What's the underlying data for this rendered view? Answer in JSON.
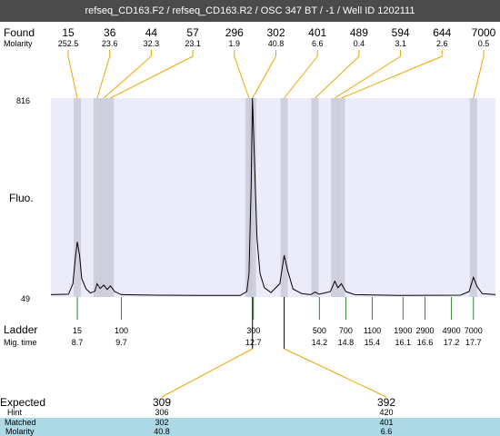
{
  "header": {
    "title": "refseq_CD163.F2 / refseq_CD163.R2 / OSC 347 BT / -1 / Well ID 1202111"
  },
  "labels": {
    "found": "Found",
    "molarity": "Molarity",
    "fluo": "Fluo.",
    "ladder": "Ladder",
    "mig_time": "Mig. time",
    "expected": "Expected",
    "hint": "Hint",
    "matched": "Matched",
    "molarity_bottom": "Molarity"
  },
  "colors": {
    "title_bg": "#4b4b4b",
    "plot_bg": "#ebebfa",
    "band": "#c8c8d6",
    "orange_lines": "#f0a500",
    "ladder_ticks": "#2a8a2a",
    "matched_bg": "#add8e6"
  },
  "chart_data": {
    "type": "line",
    "ylabel": "Fluo.",
    "y_ticks": [
      "816",
      "49"
    ],
    "ylim": [
      49,
      816
    ],
    "xlim": [
      8.1,
      18.2
    ],
    "found": [
      {
        "size": "15",
        "molarity": "252.5",
        "time": 8.7
      },
      {
        "size": "36",
        "molarity": "23.6",
        "time": 9.15
      },
      {
        "size": "44",
        "molarity": "32.3",
        "time": 9.3
      },
      {
        "size": "57",
        "molarity": "23.1",
        "time": 9.45
      },
      {
        "size": "296",
        "molarity": "1.9",
        "time": 12.6
      },
      {
        "size": "302",
        "molarity": "40.8",
        "time": 12.68
      },
      {
        "size": "401",
        "molarity": "6.6",
        "time": 13.4
      },
      {
        "size": "489",
        "molarity": "0.4",
        "time": 14.1
      },
      {
        "size": "594",
        "molarity": "3.1",
        "time": 14.55
      },
      {
        "size": "644",
        "molarity": "2.6",
        "time": 14.7
      },
      {
        "size": "7000",
        "molarity": "0.5",
        "time": 17.7
      }
    ],
    "ladder": [
      {
        "size": "15",
        "time": "8.7",
        "t": 8.7
      },
      {
        "size": "100",
        "time": "9.7",
        "t": 9.7
      },
      {
        "size": "300",
        "time": "12.7",
        "t": 12.7
      },
      {
        "size": "500",
        "time": "14.2",
        "t": 14.2
      },
      {
        "size": "700",
        "time": "14.8",
        "t": 14.8
      },
      {
        "size": "1100",
        "time": "15.4",
        "t": 15.4
      },
      {
        "size": "1900",
        "time": "16.1",
        "t": 16.1
      },
      {
        "size": "2900",
        "time": "16.6",
        "t": 16.6
      },
      {
        "size": "4900",
        "time": "17.2",
        "t": 17.2
      },
      {
        "size": "7000",
        "time": "17.7",
        "t": 17.7
      }
    ],
    "expected": [
      {
        "expected": "309",
        "hint": "306",
        "matched": "302",
        "molarity": "40.8",
        "t": 12.68
      },
      {
        "expected": "392",
        "hint": "420",
        "matched": "401",
        "molarity": "6.6",
        "t": 13.4
      }
    ],
    "trace": [
      [
        8.1,
        58
      ],
      [
        8.5,
        60
      ],
      [
        8.6,
        100
      ],
      [
        8.65,
        190
      ],
      [
        8.7,
        262
      ],
      [
        8.75,
        210
      ],
      [
        8.8,
        120
      ],
      [
        8.9,
        80
      ],
      [
        9.0,
        64
      ],
      [
        9.1,
        72
      ],
      [
        9.15,
        100
      ],
      [
        9.22,
        82
      ],
      [
        9.3,
        95
      ],
      [
        9.38,
        78
      ],
      [
        9.45,
        92
      ],
      [
        9.55,
        70
      ],
      [
        9.7,
        58
      ],
      [
        10.5,
        56
      ],
      [
        11.5,
        55
      ],
      [
        12.4,
        55
      ],
      [
        12.55,
        70
      ],
      [
        12.6,
        140
      ],
      [
        12.65,
        480
      ],
      [
        12.68,
        816
      ],
      [
        12.72,
        600
      ],
      [
        12.78,
        280
      ],
      [
        12.85,
        140
      ],
      [
        12.95,
        85
      ],
      [
        13.1,
        66
      ],
      [
        13.3,
        100
      ],
      [
        13.4,
        210
      ],
      [
        13.48,
        150
      ],
      [
        13.6,
        80
      ],
      [
        13.8,
        62
      ],
      [
        14.0,
        58
      ],
      [
        14.1,
        68
      ],
      [
        14.2,
        60
      ],
      [
        14.45,
        70
      ],
      [
        14.55,
        110
      ],
      [
        14.62,
        85
      ],
      [
        14.7,
        100
      ],
      [
        14.8,
        70
      ],
      [
        15.0,
        58
      ],
      [
        16.0,
        55
      ],
      [
        17.4,
        56
      ],
      [
        17.6,
        70
      ],
      [
        17.7,
        125
      ],
      [
        17.78,
        90
      ],
      [
        17.9,
        62
      ],
      [
        18.2,
        58
      ]
    ]
  }
}
